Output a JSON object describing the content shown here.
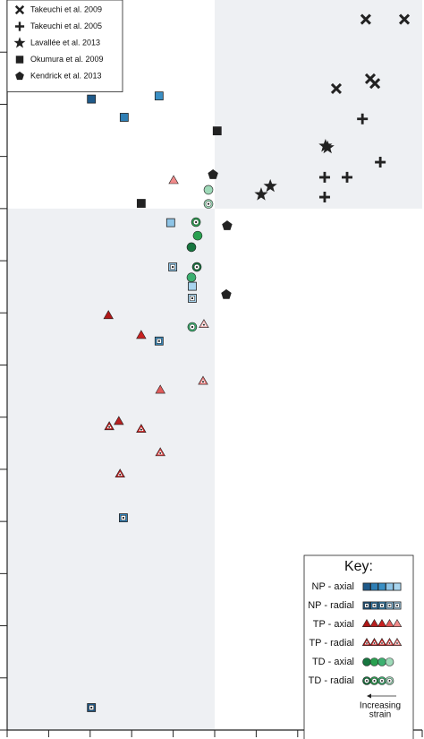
{
  "chart_data": {
    "type": "scatter",
    "xlim": [
      0,
      10
    ],
    "ylim": [
      0,
      14
    ],
    "xticks": [
      0,
      1,
      2,
      3,
      4,
      5,
      6,
      7,
      8,
      9,
      10
    ],
    "yticks": [
      0,
      1,
      2,
      3,
      4,
      5,
      6,
      7,
      8,
      9,
      10,
      11,
      12,
      13
    ],
    "shade_quadrants": {
      "x": 5,
      "y": 10,
      "color": "#eef0f3"
    },
    "series": [
      {
        "name": "Takeuchi et al. 2009",
        "marker": "x",
        "color": "#222222",
        "x": [
          8.64,
          9.57,
          7.93,
          8.75,
          8.86
        ],
        "values": [
          13.63,
          13.63,
          12.3,
          12.49,
          12.4
        ]
      },
      {
        "name": "Takeuchi et al. 2005",
        "marker": "plus",
        "color": "#222222",
        "x": [
          8.56,
          7.65,
          8.19,
          8.99,
          7.65
        ],
        "values": [
          11.72,
          10.6,
          10.6,
          10.89,
          10.22
        ]
      },
      {
        "name": "Lavallée et al. 2013",
        "marker": "star",
        "color": "#222222",
        "x": [
          7.67,
          7.72,
          6.34,
          6.12
        ],
        "values": [
          11.2,
          11.17,
          10.43,
          10.27
        ]
      },
      {
        "name": "Okumura et al. 2009",
        "marker": "square",
        "color": "#222222",
        "x": [
          5.06,
          3.23
        ],
        "values": [
          11.49,
          10.1
        ]
      },
      {
        "name": "Kendrick et al. 2013",
        "marker": "pentagon",
        "color": "#222222",
        "x": [
          4.96,
          5.3,
          5.28
        ],
        "values": [
          10.65,
          9.67,
          8.35
        ]
      },
      {
        "name": "NP - axial",
        "marker": "square",
        "radial": false,
        "colors": [
          "#1f5a8a",
          "#2f7fb5",
          "#3a8fc4",
          "#8ec4e6",
          "#a8d4ee"
        ],
        "x": [
          2.03,
          2.82,
          3.66,
          3.94,
          4.46
        ],
        "values": [
          12.1,
          11.75,
          12.16,
          9.73,
          8.51
        ]
      },
      {
        "name": "NP - radial",
        "marker": "square",
        "radial": true,
        "colors": [
          "#1f5a8a",
          "#2f7fb5",
          "#3a8fc4",
          "#8ec4e6",
          "#a8d4ee"
        ],
        "x": [
          2.03,
          2.8,
          3.66,
          3.99,
          4.46
        ],
        "values": [
          0.43,
          4.07,
          7.46,
          8.88,
          8.28
        ]
      },
      {
        "name": "TP - axial",
        "marker": "triangle",
        "radial": false,
        "colors": [
          "#b01818",
          "#b82020",
          "#c82020",
          "#e05a5a",
          "#f08a8a"
        ],
        "x": [
          2.44,
          2.69,
          3.23,
          3.69,
          4.01
        ],
        "values": [
          7.94,
          5.91,
          7.56,
          6.51,
          10.53
        ]
      },
      {
        "name": "TP - radial",
        "marker": "triangle",
        "radial": true,
        "colors": [
          "#b01818",
          "#b82020",
          "#c82020",
          "#d84040",
          "#e07070",
          "#f0b0b0"
        ],
        "x": [
          2.46,
          2.72,
          3.23,
          3.69,
          4.72,
          4.74
        ],
        "values": [
          5.81,
          4.9,
          5.76,
          5.31,
          6.68,
          7.77
        ]
      },
      {
        "name": "TD - axial",
        "marker": "circle",
        "radial": false,
        "colors": [
          "#17753f",
          "#2aa050",
          "#3cb070",
          "#9ed9b8"
        ],
        "x": [
          4.44,
          4.59,
          4.44,
          4.85
        ],
        "values": [
          9.26,
          9.48,
          8.68,
          10.36
        ]
      },
      {
        "name": "TD - radial",
        "marker": "circle",
        "radial": true,
        "colors": [
          "#17753f",
          "#2aa050",
          "#3cb070",
          "#9ed9b8"
        ],
        "x": [
          4.57,
          4.55,
          4.46,
          4.85
        ],
        "values": [
          8.88,
          9.74,
          7.73,
          10.09
        ]
      }
    ],
    "key_title": "Key:",
    "key_note": [
      "Increasing",
      "strain"
    ]
  }
}
